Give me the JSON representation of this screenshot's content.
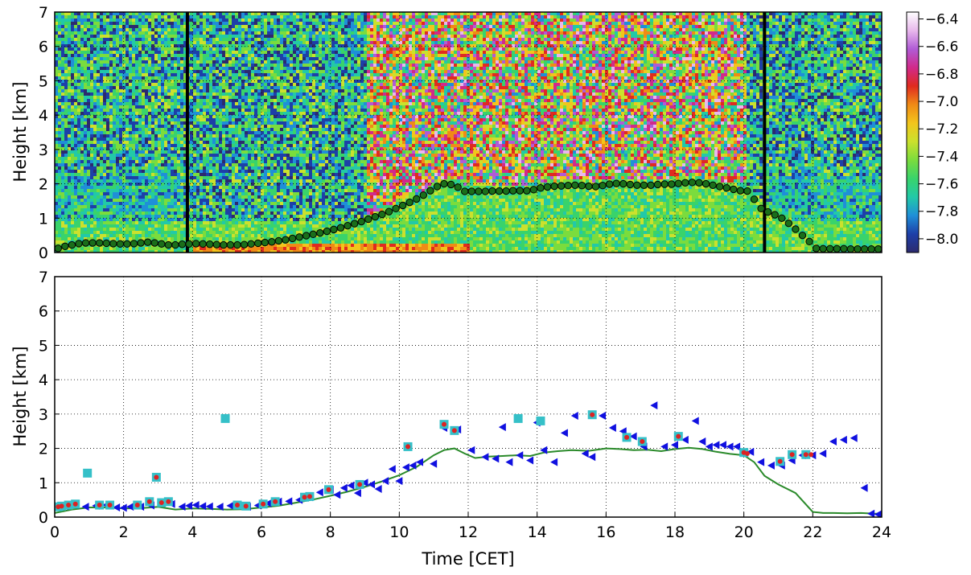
{
  "chart_data": [
    {
      "type": "heatmap",
      "ylabel": "Height [km]",
      "ylim": [
        0,
        7
      ],
      "yticks": [
        "0",
        "1",
        "2",
        "3",
        "4",
        "5",
        "6",
        "7"
      ],
      "xlim": [
        0,
        24
      ],
      "grid": true,
      "colorbar": {
        "ticks": [
          "−6.4",
          "−6.6",
          "−6.8",
          "−7.0",
          "−7.2",
          "−7.4",
          "−7.6",
          "−7.8",
          "−8.0"
        ],
        "values": [
          -6.4,
          -6.6,
          -6.8,
          -7.0,
          -7.2,
          -7.4,
          -7.6,
          -7.8,
          -8.0
        ],
        "range": [
          -8.1,
          -6.35
        ],
        "colors": [
          "#2c2a6e",
          "#1d3fa8",
          "#1f8fd8",
          "#22c9a8",
          "#39d36b",
          "#7bdc3d",
          "#cbe12d",
          "#f2c51c",
          "#f08a16",
          "#e02b1f",
          "#d12a8a",
          "#b05bd6",
          "#e8b8ec",
          "#ffffff"
        ]
      },
      "vertical_markers_x": [
        3.85,
        20.6
      ],
      "series": [
        {
          "marker": "circle",
          "color": "#1a6e1a",
          "x": [
            0.1,
            0.3,
            0.5,
            0.7,
            0.9,
            1.1,
            1.3,
            1.5,
            1.7,
            1.9,
            2.1,
            2.3,
            2.5,
            2.7,
            2.9,
            3.1,
            3.3,
            3.5,
            3.7,
            3.9,
            4.1,
            4.3,
            4.5,
            4.7,
            4.9,
            5.1,
            5.3,
            5.5,
            5.7,
            5.9,
            6.1,
            6.3,
            6.5,
            6.7,
            6.9,
            7.1,
            7.3,
            7.5,
            7.7,
            7.9,
            8.1,
            8.3,
            8.5,
            8.7,
            8.9,
            9.1,
            9.3,
            9.5,
            9.7,
            9.9,
            10.1,
            10.3,
            10.5,
            10.7,
            10.9,
            11.1,
            11.3,
            11.5,
            11.7,
            11.9,
            12.1,
            12.3,
            12.5,
            12.7,
            12.9,
            13.1,
            13.3,
            13.5,
            13.7,
            13.9,
            14.1,
            14.3,
            14.5,
            14.7,
            14.9,
            15.1,
            15.3,
            15.5,
            15.7,
            15.9,
            16.1,
            16.3,
            16.5,
            16.7,
            16.9,
            17.1,
            17.3,
            17.5,
            17.7,
            17.9,
            18.1,
            18.3,
            18.5,
            18.7,
            18.9,
            19.1,
            19.3,
            19.5,
            19.7,
            19.9,
            20.1,
            20.3,
            20.5,
            20.7,
            20.9,
            21.1,
            21.3,
            21.5,
            21.7,
            21.9,
            22.1,
            22.3,
            22.5,
            22.7,
            22.9,
            23.1,
            23.3,
            23.5,
            23.7,
            23.9
          ],
          "y": [
            0.12,
            0.18,
            0.22,
            0.26,
            0.28,
            0.28,
            0.28,
            0.27,
            0.26,
            0.25,
            0.25,
            0.26,
            0.28,
            0.3,
            0.28,
            0.25,
            0.22,
            0.22,
            0.24,
            0.25,
            0.26,
            0.25,
            0.24,
            0.23,
            0.22,
            0.22,
            0.22,
            0.23,
            0.25,
            0.27,
            0.29,
            0.31,
            0.34,
            0.37,
            0.41,
            0.45,
            0.49,
            0.53,
            0.57,
            0.62,
            0.67,
            0.72,
            0.78,
            0.84,
            0.9,
            0.97,
            1.04,
            1.11,
            1.19,
            1.28,
            1.37,
            1.46,
            1.56,
            1.67,
            1.8,
            1.92,
            2.0,
            1.98,
            1.9,
            1.78,
            1.78,
            1.78,
            1.78,
            1.79,
            1.79,
            1.79,
            1.8,
            1.8,
            1.8,
            1.83,
            1.88,
            1.91,
            1.93,
            1.94,
            1.95,
            1.96,
            1.95,
            1.93,
            1.92,
            1.95,
            1.99,
            2.01,
            2.0,
            1.98,
            1.96,
            1.96,
            1.96,
            1.98,
            1.99,
            1.99,
            2.01,
            2.03,
            2.04,
            2.03,
            2.0,
            1.96,
            1.92,
            1.88,
            1.84,
            1.8,
            1.79,
            1.55,
            1.28,
            1.18,
            1.1,
            1.0,
            0.85,
            0.68,
            0.5,
            0.32,
            0.12,
            0.11,
            0.11,
            0.11,
            0.11,
            0.1,
            0.1,
            0.1,
            0.1,
            0.1
          ]
        }
      ]
    },
    {
      "type": "scatter",
      "xlabel": "Time [CET]",
      "ylabel": "Height [km]",
      "xlim": [
        0,
        24
      ],
      "ylim": [
        0,
        7
      ],
      "xticks": [
        "0",
        "2",
        "4",
        "6",
        "8",
        "10",
        "12",
        "14",
        "16",
        "18",
        "20",
        "22",
        "24"
      ],
      "yticks": [
        "0",
        "1",
        "2",
        "3",
        "4",
        "5",
        "6",
        "7"
      ],
      "grid": true,
      "series": [
        {
          "marker": "line",
          "color": "#2a8a2a",
          "x": [
            0,
            0.5,
            1,
            1.5,
            2,
            2.5,
            3,
            3.5,
            4,
            4.5,
            5,
            5.5,
            6,
            6.5,
            7,
            7.5,
            8,
            8.5,
            9,
            9.5,
            10,
            10.5,
            11,
            11.3,
            11.6,
            11.9,
            12.2,
            12.6,
            13,
            13.4,
            13.8,
            14.2,
            14.6,
            15,
            15.5,
            16,
            16.4,
            16.8,
            17.2,
            17.6,
            18,
            18.4,
            18.8,
            19.2,
            19.6,
            20,
            20.3,
            20.6,
            21,
            21.5,
            22,
            22.3,
            22.6,
            23,
            23.4,
            23.8,
            24
          ],
          "y": [
            0.12,
            0.22,
            0.28,
            0.28,
            0.25,
            0.26,
            0.3,
            0.22,
            0.25,
            0.24,
            0.22,
            0.23,
            0.28,
            0.33,
            0.42,
            0.51,
            0.62,
            0.74,
            0.88,
            1.04,
            1.22,
            1.46,
            1.8,
            1.95,
            2.0,
            1.85,
            1.72,
            1.76,
            1.78,
            1.8,
            1.78,
            1.88,
            1.92,
            1.95,
            1.93,
            2.0,
            1.98,
            1.95,
            1.96,
            1.92,
            1.98,
            2.02,
            1.98,
            1.9,
            1.84,
            1.8,
            1.6,
            1.2,
            0.95,
            0.7,
            0.15,
            0.12,
            0.12,
            0.11,
            0.12,
            0.1,
            0.1
          ]
        },
        {
          "marker": "triangle-left",
          "color": "#1010e0",
          "x": [
            0.3,
            0.6,
            0.9,
            1.2,
            1.5,
            1.8,
            2.0,
            2.2,
            2.5,
            2.8,
            3.1,
            3.4,
            3.7,
            3.9,
            4.1,
            4.3,
            4.5,
            4.8,
            5.1,
            5.3,
            5.6,
            5.9,
            6.2,
            6.5,
            6.8,
            7.1,
            7.4,
            7.7,
            8.0,
            8.2,
            8.4,
            8.6,
            8.8,
            9.0,
            9.2,
            9.4,
            9.6,
            9.8,
            10.0,
            10.2,
            10.4,
            10.6,
            11.0,
            11.3,
            11.7,
            12.1,
            12.5,
            12.8,
            13.0,
            13.2,
            13.5,
            13.8,
            14.0,
            14.2,
            14.5,
            14.8,
            15.1,
            15.4,
            15.6,
            15.9,
            16.2,
            16.5,
            16.8,
            17.1,
            17.4,
            17.7,
            18.0,
            18.3,
            18.6,
            18.8,
            19.0,
            19.2,
            19.4,
            19.6,
            19.8,
            20.2,
            20.5,
            20.8,
            21.1,
            21.4,
            21.7,
            22.0,
            22.3,
            22.6,
            22.9,
            23.2,
            23.5,
            23.7,
            23.9
          ],
          "y": [
            0.32,
            0.35,
            0.3,
            0.33,
            0.35,
            0.28,
            0.27,
            0.3,
            0.3,
            0.34,
            0.4,
            0.38,
            0.3,
            0.33,
            0.35,
            0.32,
            0.31,
            0.3,
            0.33,
            0.35,
            0.3,
            0.34,
            0.4,
            0.45,
            0.46,
            0.5,
            0.58,
            0.72,
            0.8,
            0.65,
            0.85,
            0.92,
            0.7,
            1.0,
            0.95,
            0.82,
            1.05,
            1.4,
            1.05,
            1.45,
            1.5,
            1.6,
            1.55,
            2.6,
            2.55,
            1.95,
            1.75,
            1.7,
            2.62,
            1.6,
            1.8,
            1.65,
            2.75,
            1.95,
            1.6,
            2.45,
            2.95,
            1.85,
            1.75,
            2.95,
            2.6,
            2.5,
            2.35,
            2.05,
            3.25,
            2.05,
            2.1,
            2.25,
            2.8,
            2.2,
            2.05,
            2.1,
            2.1,
            2.05,
            2.05,
            1.9,
            1.6,
            1.5,
            1.5,
            1.65,
            1.8,
            1.8,
            1.85,
            2.2,
            2.25,
            2.3,
            0.85,
            0.1,
            0.08
          ]
        },
        {
          "marker": "square",
          "color": "#35c0c8",
          "x": [
            0.1,
            0.2,
            0.4,
            0.6,
            0.95,
            1.3,
            1.6,
            2.4,
            2.75,
            2.95,
            3.1,
            3.3,
            4.95,
            5.3,
            5.55,
            6.05,
            6.4,
            7.25,
            7.4,
            7.95,
            8.85,
            10.25,
            11.3,
            11.6,
            13.45,
            14.1,
            15.6,
            16.6,
            17.05,
            18.1,
            20.0,
            21.05,
            21.4,
            21.8
          ],
          "y": [
            0.3,
            0.32,
            0.35,
            0.38,
            1.28,
            0.35,
            0.35,
            0.35,
            0.45,
            1.16,
            0.42,
            0.45,
            2.87,
            0.35,
            0.32,
            0.38,
            0.45,
            0.58,
            0.6,
            0.8,
            0.95,
            2.05,
            2.7,
            2.52,
            2.87,
            2.8,
            2.98,
            2.32,
            2.2,
            2.35,
            1.88,
            1.62,
            1.82,
            1.82
          ]
        },
        {
          "marker": "dot",
          "color": "#dd2222",
          "x": [
            0.1,
            0.2,
            0.4,
            0.6,
            1.3,
            1.6,
            2.4,
            2.75,
            2.95,
            3.1,
            3.3,
            5.3,
            5.55,
            6.05,
            6.4,
            7.25,
            7.4,
            7.95,
            8.85,
            10.25,
            11.3,
            11.6,
            15.6,
            16.6,
            17.05,
            18.1,
            20.0,
            20.1,
            21.05,
            21.4,
            21.8,
            21.95
          ],
          "y": [
            0.3,
            0.32,
            0.35,
            0.38,
            0.35,
            0.35,
            0.35,
            0.45,
            1.16,
            0.42,
            0.45,
            0.35,
            0.32,
            0.38,
            0.45,
            0.58,
            0.6,
            0.8,
            0.95,
            2.05,
            2.7,
            2.52,
            2.98,
            2.32,
            2.2,
            2.35,
            1.88,
            1.85,
            1.62,
            1.82,
            1.82,
            1.82
          ]
        }
      ]
    }
  ]
}
